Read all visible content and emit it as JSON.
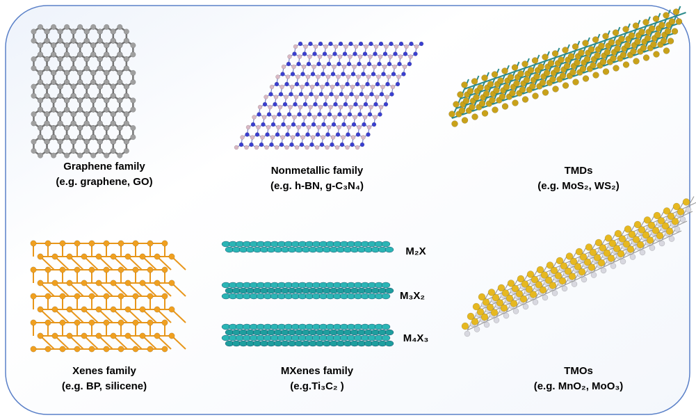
{
  "panels": [
    {
      "title": "Graphene family",
      "example": "(e.g. graphene, GO)"
    },
    {
      "title": "Nonmetallic  family",
      "example": "(e.g. h-BN, g-C₃N₄)"
    },
    {
      "title": "TMDs",
      "example": "(e.g. MoS₂, WS₂)"
    },
    {
      "title": "Xenes  family",
      "example": "(e.g. BP, silicene)"
    },
    {
      "title": "MXenes family",
      "example": "(e.g.Ti₃C₂ )"
    },
    {
      "title": "TMOs",
      "example": "(e.g. MnO₂, MoO₃)"
    }
  ],
  "mxene_labels": [
    "M₂X",
    "M₃X₂",
    "M₄X₃"
  ]
}
